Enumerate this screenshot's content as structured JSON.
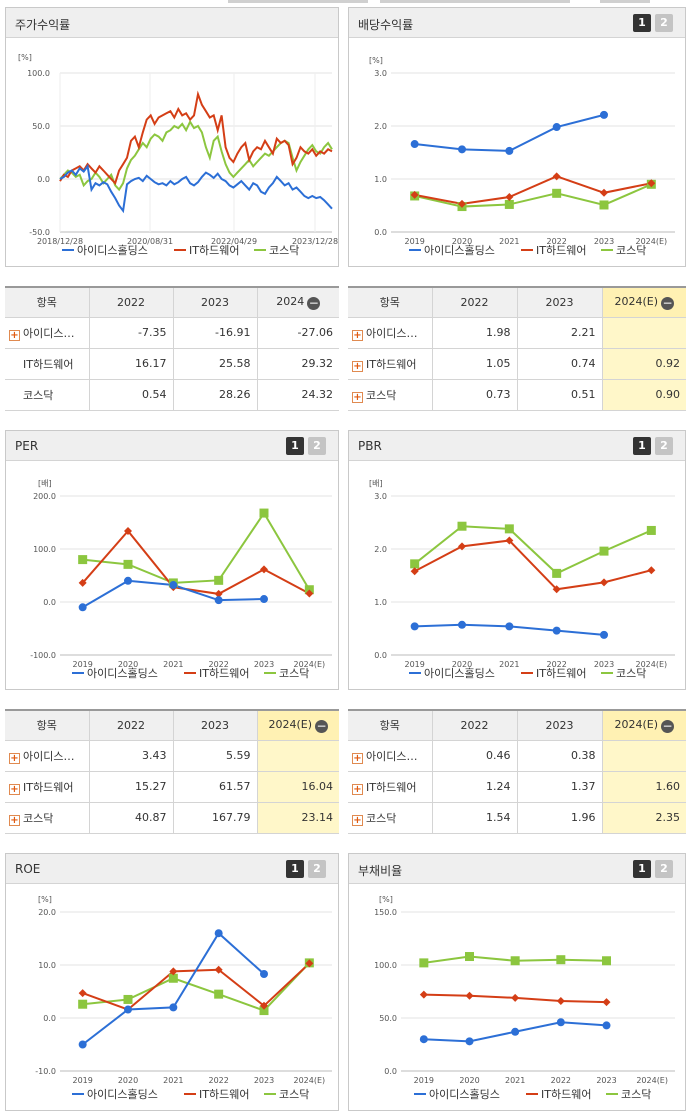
{
  "panels": {
    "stock": {
      "title": "주가수익률",
      "unit": "[%]",
      "y_ticks": [
        "100.0",
        "50.0",
        "0.0",
        "-50.0"
      ],
      "x_ticks": [
        "2018/12/28",
        "2020/08/31",
        "2022/04/29",
        "2023/12/28"
      ]
    },
    "div": {
      "title": "배당수익률",
      "unit": "[%]",
      "btn1": "1",
      "btn2": "2"
    },
    "per": {
      "title": "PER",
      "unit": "[배]",
      "btn1": "1",
      "btn2": "2"
    },
    "pbr": {
      "title": "PBR",
      "unit": "[배]",
      "btn1": "1",
      "btn2": "2"
    },
    "roe": {
      "title": "ROE",
      "unit": "[%]",
      "btn1": "1",
      "btn2": "2"
    },
    "debt": {
      "title": "부채비율",
      "unit": "[%]",
      "btn1": "1",
      "btn2": "2"
    }
  },
  "legend": [
    "아이디스홀딩스",
    "IT하드웨어",
    "코스닥"
  ],
  "colors": {
    "idis": "#2c6fd6",
    "it": "#d43e16",
    "kosdaq": "#8cc63f"
  },
  "tables": {
    "stock": {
      "header": [
        "항목",
        "2022",
        "2023",
        "2024"
      ],
      "rows": [
        {
          "name": "아이디스…",
          "v": [
            "-7.35",
            "-16.91",
            "-27.06"
          ]
        },
        {
          "name": "IT하드웨어",
          "v": [
            "16.17",
            "25.58",
            "29.32"
          ]
        },
        {
          "name": "코스닥",
          "v": [
            "0.54",
            "28.26",
            "24.32"
          ]
        }
      ]
    },
    "div": {
      "header": [
        "항목",
        "2022",
        "2023",
        "2024(E)"
      ],
      "rows": [
        {
          "name": "아이디스…",
          "v": [
            "1.98",
            "2.21",
            ""
          ]
        },
        {
          "name": "IT하드웨어",
          "v": [
            "1.05",
            "0.74",
            "0.92"
          ]
        },
        {
          "name": "코스닥",
          "v": [
            "0.73",
            "0.51",
            "0.90"
          ]
        }
      ]
    },
    "per": {
      "header": [
        "항목",
        "2022",
        "2023",
        "2024(E)"
      ],
      "rows": [
        {
          "name": "아이디스…",
          "v": [
            "3.43",
            "5.59",
            ""
          ]
        },
        {
          "name": "IT하드웨어",
          "v": [
            "15.27",
            "61.57",
            "16.04"
          ]
        },
        {
          "name": "코스닥",
          "v": [
            "40.87",
            "167.79",
            "23.14"
          ]
        }
      ]
    },
    "pbr": {
      "header": [
        "항목",
        "2022",
        "2023",
        "2024(E)"
      ],
      "rows": [
        {
          "name": "아이디스…",
          "v": [
            "0.46",
            "0.38",
            ""
          ]
        },
        {
          "name": "IT하드웨어",
          "v": [
            "1.24",
            "1.37",
            "1.60"
          ]
        },
        {
          "name": "코스닥",
          "v": [
            "1.54",
            "1.96",
            "2.35"
          ]
        }
      ]
    }
  },
  "chart_data": [
    {
      "type": "line",
      "title": "주가수익률",
      "ylabel": "[%]",
      "ylim": [
        -50,
        100
      ],
      "x_ticks": [
        "2018/12/28",
        "2020/08/31",
        "2022/04/29",
        "2023/12/28"
      ],
      "series": [
        {
          "name": "아이디스홀딩스",
          "values": [
            0,
            2,
            6,
            8,
            4,
            10,
            7,
            12,
            -10,
            -4,
            -6,
            -3,
            -5,
            -12,
            -18,
            -25,
            -30,
            -5,
            -2,
            0,
            1,
            -2,
            3,
            0,
            -3,
            -5,
            -4,
            -6,
            -2,
            -5,
            -3,
            0,
            2,
            -4,
            -6,
            -3,
            2,
            6,
            4,
            1,
            5,
            0,
            -2,
            -6,
            -8,
            -5,
            -2,
            -6,
            -10,
            -4,
            -6,
            -12,
            -14,
            -8,
            -4,
            2,
            -2,
            -6,
            -4,
            -10,
            -8,
            -12,
            -16,
            -18,
            -16,
            -18,
            -17,
            -20,
            -24,
            -28
          ]
        },
        {
          "name": "IT하드웨어",
          "values": [
            -2,
            4,
            2,
            8,
            10,
            12,
            8,
            14,
            10,
            6,
            12,
            8,
            4,
            0,
            -4,
            8,
            14,
            20,
            36,
            40,
            30,
            44,
            56,
            60,
            52,
            58,
            60,
            62,
            64,
            58,
            66,
            60,
            62,
            56,
            60,
            80,
            70,
            64,
            58,
            60,
            46,
            60,
            30,
            20,
            16,
            24,
            30,
            34,
            18,
            26,
            30,
            28,
            36,
            30,
            24,
            38,
            34,
            36,
            32,
            14,
            20,
            30,
            26,
            24,
            28,
            22,
            26,
            24,
            28,
            26
          ]
        },
        {
          "name": "코스닥",
          "values": [
            0,
            4,
            8,
            6,
            2,
            4,
            -6,
            -2,
            0,
            6,
            2,
            -4,
            0,
            4,
            -6,
            -10,
            -4,
            10,
            18,
            22,
            28,
            34,
            30,
            38,
            42,
            40,
            36,
            44,
            46,
            50,
            48,
            52,
            46,
            54,
            48,
            50,
            44,
            30,
            20,
            36,
            40,
            26,
            14,
            6,
            2,
            6,
            10,
            14,
            18,
            12,
            16,
            20,
            24,
            22,
            26,
            30,
            34,
            36,
            34,
            20,
            8,
            16,
            22,
            28,
            32,
            26,
            24,
            30,
            34,
            28
          ]
        }
      ]
    },
    {
      "type": "line",
      "title": "배당수익률",
      "ylabel": "[%]",
      "ylim": [
        0,
        3
      ],
      "categories": [
        "2019",
        "2020",
        "2021",
        "2022",
        "2023",
        "2024(E)"
      ],
      "series": [
        {
          "name": "아이디스홀딩스",
          "values": [
            1.66,
            1.56,
            1.53,
            1.98,
            2.21,
            null
          ]
        },
        {
          "name": "IT하드웨어",
          "values": [
            0.7,
            0.53,
            0.66,
            1.05,
            0.74,
            0.92
          ]
        },
        {
          "name": "코스닥",
          "values": [
            0.68,
            0.48,
            0.52,
            0.73,
            0.51,
            0.9
          ]
        }
      ]
    },
    {
      "type": "line",
      "title": "PER",
      "ylabel": "[배]",
      "ylim": [
        -100,
        200
      ],
      "categories": [
        "2019",
        "2020",
        "2021",
        "2022",
        "2023",
        "2024(E)"
      ],
      "series": [
        {
          "name": "아이디스홀딩스",
          "values": [
            -10,
            40,
            32,
            3.43,
            5.59,
            null
          ]
        },
        {
          "name": "IT하드웨어",
          "values": [
            36,
            134,
            28,
            15.27,
            61.57,
            16.04
          ]
        },
        {
          "name": "코스닥",
          "values": [
            80,
            71,
            36,
            40.87,
            167.79,
            23.14
          ]
        }
      ]
    },
    {
      "type": "line",
      "title": "PBR",
      "ylabel": "[배]",
      "ylim": [
        0,
        3
      ],
      "categories": [
        "2019",
        "2020",
        "2021",
        "2022",
        "2023",
        "2024(E)"
      ],
      "series": [
        {
          "name": "아이디스홀딩스",
          "values": [
            0.54,
            0.57,
            0.54,
            0.46,
            0.38,
            null
          ]
        },
        {
          "name": "IT하드웨어",
          "values": [
            1.58,
            2.05,
            2.16,
            1.24,
            1.37,
            1.6
          ]
        },
        {
          "name": "코스닥",
          "values": [
            1.72,
            2.43,
            2.38,
            1.54,
            1.96,
            2.35
          ]
        }
      ]
    },
    {
      "type": "line",
      "title": "ROE",
      "ylabel": "[%]",
      "ylim": [
        -10,
        20
      ],
      "categories": [
        "2019",
        "2020",
        "2021",
        "2022",
        "2023",
        "2024(E)"
      ],
      "series": [
        {
          "name": "아이디스홀딩스",
          "values": [
            -5.0,
            1.6,
            2.0,
            16.0,
            8.3,
            null
          ]
        },
        {
          "name": "IT하드웨어",
          "values": [
            4.7,
            1.6,
            8.8,
            9.1,
            2.3,
            10.3
          ]
        },
        {
          "name": "코스닥",
          "values": [
            2.6,
            3.5,
            7.5,
            4.5,
            1.4,
            10.4
          ]
        }
      ]
    },
    {
      "type": "line",
      "title": "부채비율",
      "ylabel": "[%]",
      "ylim": [
        0,
        150
      ],
      "categories": [
        "2019",
        "2020",
        "2021",
        "2022",
        "2023",
        "2024(E)"
      ],
      "series": [
        {
          "name": "아이디스홀딩스",
          "values": [
            30,
            28,
            37,
            46,
            43,
            null
          ]
        },
        {
          "name": "IT하드웨어",
          "values": [
            72,
            71,
            69,
            66,
            65,
            null
          ]
        },
        {
          "name": "코스닥",
          "values": [
            102,
            108,
            104,
            105,
            104,
            null
          ]
        }
      ]
    }
  ]
}
